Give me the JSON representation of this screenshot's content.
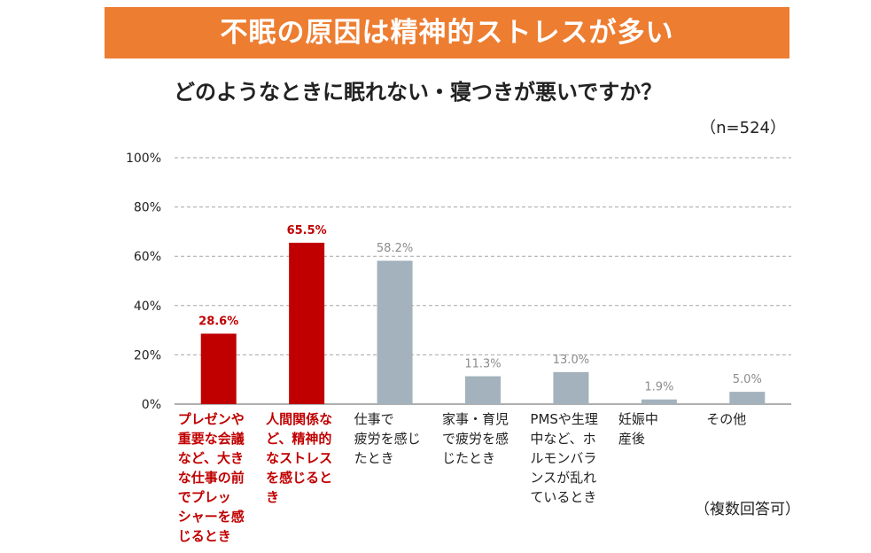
{
  "banner": {
    "title": "不眠の原因は精神的ストレスが多い"
  },
  "question": "どのようなときに眠れない・寝つきが悪いですか？",
  "sample_size": "（n=524）",
  "footnote": "（複数回答可）",
  "colors": {
    "highlight": "#C00000",
    "normal": "#A3B2BD",
    "banner": "#ED7D31",
    "grid": "#A6A6A6"
  },
  "chart_data": {
    "type": "bar",
    "categories": [
      "プレゼンや重要な会議など、大きな仕事の前でプレッシャーを感じるとき",
      "人間関係など、精神的なストレスを感じるとき",
      "仕事で疲労を感じたとき",
      "家事・育児で疲労を感じたとき",
      "PMSや生理中など、ホルモンバランスが乱れているとき",
      "妊娠中産後",
      "その他"
    ],
    "category_lines": [
      [
        "プレゼンや",
        "重要な会議",
        "など、大き",
        "な仕事の前",
        "でプレッ",
        "シャーを感",
        "じるとき"
      ],
      [
        "人間関係な",
        "ど、精神的",
        "なストレス",
        "を感じると",
        "き"
      ],
      [
        "仕事で",
        "疲労を感じ",
        "たとき"
      ],
      [
        "家事・育児",
        "で疲労を感",
        "じたとき"
      ],
      [
        "PMSや生理",
        "中など、ホ",
        "ルモンバラ",
        "ンスが乱れ",
        "ているとき"
      ],
      [
        "妊娠中",
        "産後"
      ],
      [
        "その他"
      ]
    ],
    "values": [
      28.6,
      65.5,
      58.2,
      11.3,
      13.0,
      1.9,
      5.0
    ],
    "value_labels": [
      "28.6%",
      "65.5%",
      "58.2%",
      "11.3%",
      "13.0%",
      "1.9%",
      "5.0%"
    ],
    "highlighted": [
      true,
      true,
      false,
      false,
      false,
      false,
      false
    ],
    "yticks": [
      "0%",
      "20%",
      "40%",
      "60%",
      "80%",
      "100%"
    ],
    "ylim": [
      0,
      100
    ],
    "grid": true
  }
}
